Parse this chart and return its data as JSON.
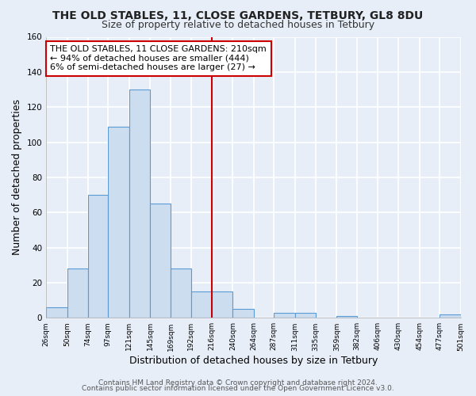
{
  "title": "THE OLD STABLES, 11, CLOSE GARDENS, TETBURY, GL8 8DU",
  "subtitle": "Size of property relative to detached houses in Tetbury",
  "xlabel": "Distribution of detached houses by size in Tetbury",
  "ylabel": "Number of detached properties",
  "bar_edges": [
    26,
    50,
    74,
    97,
    121,
    145,
    169,
    192,
    216,
    240,
    264,
    287,
    311,
    335,
    359,
    382,
    406,
    430,
    454,
    477,
    501
  ],
  "bar_heights": [
    6,
    28,
    70,
    109,
    130,
    65,
    28,
    15,
    15,
    5,
    0,
    3,
    3,
    0,
    1,
    0,
    0,
    0,
    0,
    2
  ],
  "bar_color": "#ccddf0",
  "bar_edgecolor": "#5b9bd5",
  "vline_x": 216,
  "vline_color": "#cc0000",
  "annotation_title": "THE OLD STABLES, 11 CLOSE GARDENS: 210sqm",
  "annotation_line1": "← 94% of detached houses are smaller (444)",
  "annotation_line2": "6% of semi-detached houses are larger (27) →",
  "annotation_box_edgecolor": "#cc0000",
  "annotation_box_facecolor": "#ffffff",
  "ylim": [
    0,
    160
  ],
  "yticks": [
    0,
    20,
    40,
    60,
    80,
    100,
    120,
    140,
    160
  ],
  "tick_labels": [
    "26sqm",
    "50sqm",
    "74sqm",
    "97sqm",
    "121sqm",
    "145sqm",
    "169sqm",
    "192sqm",
    "216sqm",
    "240sqm",
    "264sqm",
    "287sqm",
    "311sqm",
    "335sqm",
    "359sqm",
    "382sqm",
    "406sqm",
    "430sqm",
    "454sqm",
    "477sqm",
    "501sqm"
  ],
  "footer1": "Contains HM Land Registry data © Crown copyright and database right 2024.",
  "footer2": "Contains public sector information licensed under the Open Government Licence v3.0.",
  "bg_color": "#e8eef8",
  "plot_bg_color": "#e8eef8",
  "grid_color": "#ffffff",
  "title_fontsize": 10,
  "subtitle_fontsize": 9,
  "annotation_fontsize": 8.0,
  "footer_fontsize": 6.5
}
